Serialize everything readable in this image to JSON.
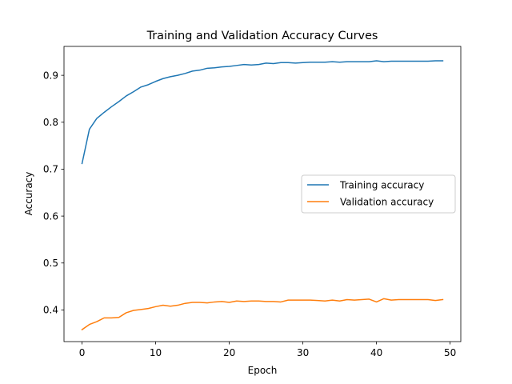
{
  "chart_data": {
    "type": "line",
    "title": "Training and Validation Accuracy Curves",
    "xlabel": "Epoch",
    "ylabel": "Accuracy",
    "xlim": [
      -2.45,
      51.45
    ],
    "ylim": [
      0.3325,
      0.9616
    ],
    "xticks": [
      0,
      10,
      20,
      30,
      40,
      50
    ],
    "yticks": [
      0.4,
      0.5,
      0.6,
      0.7,
      0.8,
      0.9
    ],
    "grid": false,
    "legend": "center-right",
    "x": [
      0,
      1,
      2,
      3,
      4,
      5,
      6,
      7,
      8,
      9,
      10,
      11,
      12,
      13,
      14,
      15,
      16,
      17,
      18,
      19,
      20,
      21,
      22,
      23,
      24,
      25,
      26,
      27,
      28,
      29,
      30,
      31,
      32,
      33,
      34,
      35,
      36,
      37,
      38,
      39,
      40,
      41,
      42,
      43,
      44,
      45,
      46,
      47,
      48,
      49
    ],
    "series": [
      {
        "name": "Training accuracy",
        "color": "#1f77b4",
        "values": [
          0.712,
          0.785,
          0.808,
          0.821,
          0.833,
          0.844,
          0.856,
          0.865,
          0.875,
          0.88,
          0.887,
          0.893,
          0.897,
          0.9,
          0.904,
          0.909,
          0.911,
          0.915,
          0.916,
          0.918,
          0.919,
          0.921,
          0.923,
          0.922,
          0.923,
          0.926,
          0.925,
          0.927,
          0.927,
          0.926,
          0.927,
          0.928,
          0.928,
          0.928,
          0.929,
          0.928,
          0.929,
          0.929,
          0.929,
          0.929,
          0.931,
          0.929,
          0.93,
          0.93,
          0.93,
          0.93,
          0.93,
          0.93,
          0.931,
          0.931
        ]
      },
      {
        "name": "Validation accuracy",
        "color": "#ff7f0e",
        "values": [
          0.358,
          0.369,
          0.375,
          0.383,
          0.383,
          0.384,
          0.394,
          0.399,
          0.401,
          0.403,
          0.407,
          0.41,
          0.408,
          0.41,
          0.414,
          0.416,
          0.416,
          0.415,
          0.417,
          0.418,
          0.416,
          0.419,
          0.418,
          0.419,
          0.419,
          0.418,
          0.418,
          0.417,
          0.421,
          0.421,
          0.421,
          0.421,
          0.42,
          0.419,
          0.421,
          0.419,
          0.422,
          0.421,
          0.422,
          0.423,
          0.417,
          0.424,
          0.421,
          0.422,
          0.422,
          0.422,
          0.422,
          0.422,
          0.42,
          0.422
        ]
      }
    ]
  }
}
